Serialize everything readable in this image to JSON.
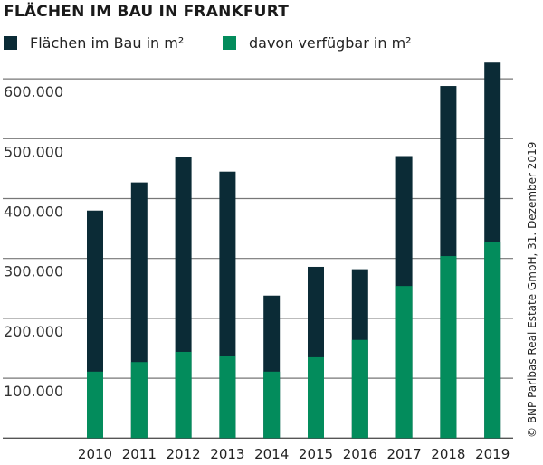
{
  "chart_data": {
    "type": "bar",
    "stacked_overlay": true,
    "title": "FLÄCHEN IM BAU IN FRANKFURT",
    "categories": [
      "2010",
      "2011",
      "2012",
      "2013",
      "2014",
      "2015",
      "2016",
      "2017",
      "2018",
      "2019"
    ],
    "series": [
      {
        "name": "Flächen im Bau in m²",
        "color": "#0b2b36",
        "values": [
          380000,
          427000,
          470000,
          445000,
          238000,
          286000,
          282000,
          471000,
          588000,
          627000
        ]
      },
      {
        "name": "davon verfügbar in m²",
        "color": "#038c5c",
        "values": [
          111000,
          127000,
          144000,
          137000,
          111000,
          135000,
          164000,
          254000,
          304000,
          328000
        ]
      }
    ],
    "yticks": [
      100000,
      200000,
      300000,
      400000,
      500000,
      600000
    ],
    "ytick_labels": [
      "100.000",
      "200.000",
      "300.000",
      "400.000",
      "500.000",
      "600.000"
    ],
    "ylim": [
      0,
      640000
    ],
    "grid": true,
    "legend": "top-left",
    "xlabel": "",
    "ylabel": ""
  },
  "credit": "© BNP Paribas Real Estate GmbH, 31. Dezember 2019"
}
